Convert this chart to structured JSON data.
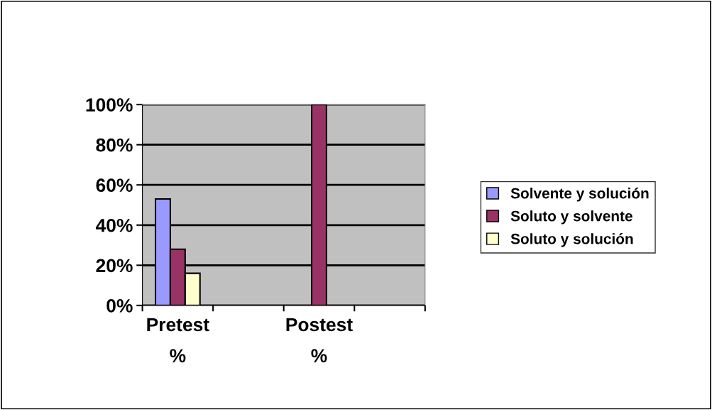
{
  "chart_data": {
    "type": "bar",
    "categories": [
      "Pretest\n%",
      null,
      "Postest\n%",
      null
    ],
    "series": [
      {
        "name": "Solvente y solución",
        "color": "#9999ff",
        "values": [
          53,
          null,
          null,
          null
        ]
      },
      {
        "name": "Soluto y solvente",
        "color": "#993366",
        "values": [
          28,
          null,
          100,
          null
        ]
      },
      {
        "name": "Soluto y solución",
        "color": "#ffffcc",
        "values": [
          16,
          null,
          null,
          null
        ]
      }
    ],
    "ylim": [
      0,
      100
    ],
    "yticks": [
      {
        "value": 0,
        "label": "0%"
      },
      {
        "value": 20,
        "label": "20%"
      },
      {
        "value": 40,
        "label": "40%"
      },
      {
        "value": 60,
        "label": "60%"
      },
      {
        "value": 80,
        "label": "80%"
      },
      {
        "value": 100,
        "label": "100%"
      }
    ],
    "grid": "y",
    "legend": "right"
  }
}
